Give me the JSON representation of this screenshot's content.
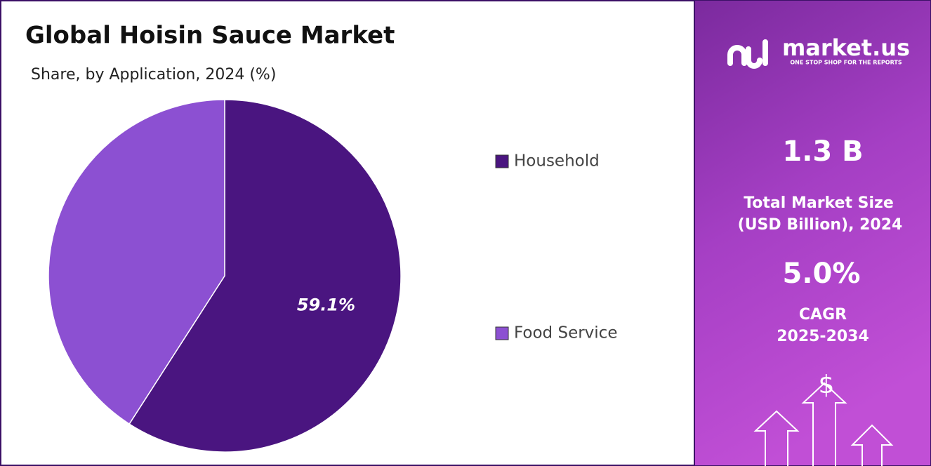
{
  "chart_data": {
    "type": "pie",
    "title": "Global Hoisin Sauce Market",
    "subtitle": "Share, by Application, 2024 (%)",
    "categories": [
      "Household",
      "Food Service"
    ],
    "values": [
      59.1,
      40.9
    ],
    "value_labels": [
      "59.1%",
      null
    ],
    "colors": [
      "#4a1580",
      "#8c50d2"
    ],
    "legend": "right"
  },
  "side_panel": {
    "logo": "market.us",
    "tagline": "ONE STOP SHOP FOR THE REPORTS",
    "market_size": "1.3 B",
    "market_size_label": [
      "Total Market Size",
      "(USD Billion), 2024"
    ],
    "cagr": "5.0%",
    "cagr_label": [
      "CAGR",
      "2025-2034"
    ],
    "icon": "$"
  }
}
